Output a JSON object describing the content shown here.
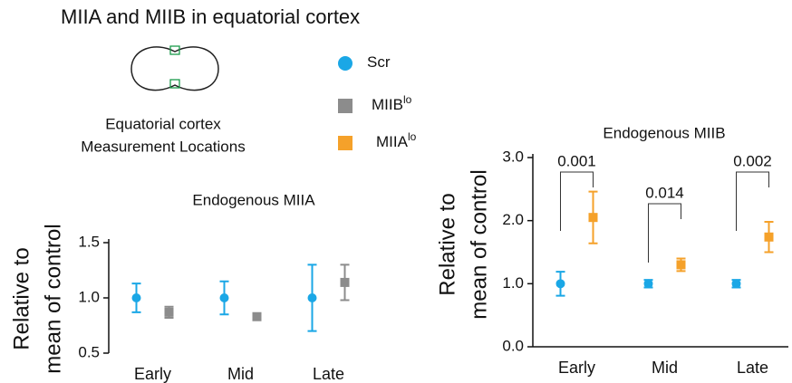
{
  "title": "MIIA and MIIB in equatorial cortex",
  "schematic": {
    "caption_lines": [
      "Equatorial cortex",
      "Measurement Locations"
    ]
  },
  "legend": [
    {
      "name": "Scr",
      "color": "#1aa7e6",
      "marker": "circle"
    },
    {
      "name": "MIIB",
      "superscript": "lo",
      "color": "#8c8c8c",
      "marker": "square"
    },
    {
      "name": "MIIA",
      "superscript": "lo",
      "color": "#f5a12a",
      "marker": "square"
    }
  ],
  "chart_data": [
    {
      "type": "errorbar",
      "title": "Endogenous MIIA",
      "ylabel": [
        "Relative to",
        "mean of control"
      ],
      "categories": [
        "Early",
        "Mid",
        "Late"
      ],
      "ylim": [
        0.5,
        1.5
      ],
      "yticks": [
        {
          "value": 0.5,
          "label": "0.5"
        },
        {
          "value": 1.0,
          "label": "1.0"
        },
        {
          "value": 1.5,
          "label": "1.5"
        }
      ],
      "series": [
        {
          "color": "#1aa7e6",
          "marker": "circle",
          "values": [
            1.0,
            1.0,
            1.0
          ],
          "errors": [
            0.13,
            0.15,
            0.3
          ]
        },
        {
          "color": "#8c8c8c",
          "marker": "square",
          "values": [
            0.87,
            0.83,
            1.14
          ],
          "errors": [
            0.05,
            0.02,
            0.16
          ]
        }
      ]
    },
    {
      "type": "errorbar",
      "title": "Endogenous MIIB",
      "ylabel": [
        "Relative to",
        "mean of control"
      ],
      "categories": [
        "Early",
        "Mid",
        "Late"
      ],
      "ylim": [
        0,
        3
      ],
      "yticks": [
        {
          "value": 0,
          "label": "0.0"
        },
        {
          "value": 1,
          "label": "1.0"
        },
        {
          "value": 2,
          "label": "2.0"
        },
        {
          "value": 3,
          "label": "3.0"
        }
      ],
      "x_axis_line": true,
      "p_values": [
        "0.001",
        "0.014",
        "0.002"
      ],
      "series": [
        {
          "color": "#1aa7e6",
          "marker": "circle",
          "values": [
            1.0,
            1.0,
            1.0
          ],
          "errors": [
            0.19,
            0.06,
            0.06
          ]
        },
        {
          "color": "#f5a12a",
          "marker": "square",
          "values": [
            2.05,
            1.3,
            1.74
          ],
          "errors": [
            0.41,
            0.1,
            0.24
          ]
        }
      ]
    }
  ]
}
